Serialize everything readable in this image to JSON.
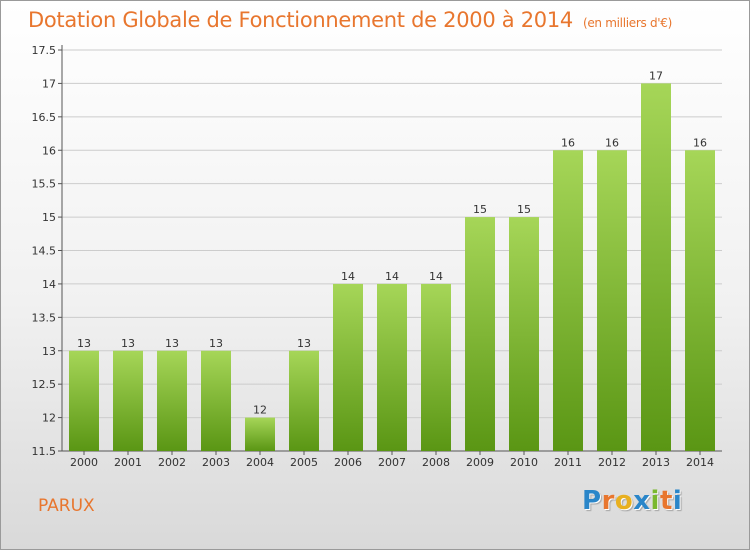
{
  "title": "Dotation Globale de Fonctionnement de 2000 à 2014",
  "subtitle": "(en milliers d'€)",
  "town": "PARUX",
  "logo": {
    "letters": [
      "P",
      "r",
      "o",
      "x",
      "i",
      "t",
      "i"
    ],
    "colors": [
      "#2a86c9",
      "#e8762e",
      "#e8b020",
      "#2a86c9",
      "#7ab82e",
      "#e8762e",
      "#2a86c9"
    ]
  },
  "colors": {
    "title": "#e8762e",
    "bar_top": "#a6d658",
    "bar_bottom": "#5a9614",
    "grid": "#cccccc"
  },
  "chart_data": {
    "type": "bar",
    "categories": [
      "2000",
      "2001",
      "2002",
      "2003",
      "2004",
      "2005",
      "2006",
      "2007",
      "2008",
      "2009",
      "2010",
      "2011",
      "2012",
      "2013",
      "2014"
    ],
    "values": [
      13,
      13,
      13,
      13,
      12,
      13,
      14,
      14,
      14,
      15,
      15,
      16,
      16,
      17,
      16
    ],
    "data_labels": [
      "13",
      "13",
      "13",
      "13",
      "12",
      "13",
      "14",
      "14",
      "14",
      "15",
      "15",
      "16",
      "16",
      "17",
      "16"
    ],
    "ylim": [
      11.5,
      17.5
    ],
    "yticks": [
      11.5,
      12,
      12.5,
      13,
      13.5,
      14,
      14.5,
      15,
      15.5,
      16,
      16.5,
      17,
      17.5
    ],
    "ytick_labels": [
      "11.5",
      "12",
      "12.5",
      "13",
      "13.5",
      "14",
      "14.5",
      "15",
      "15.5",
      "16",
      "16.5",
      "17",
      "17.5"
    ],
    "grid": true,
    "xlabel": "",
    "ylabel": ""
  }
}
